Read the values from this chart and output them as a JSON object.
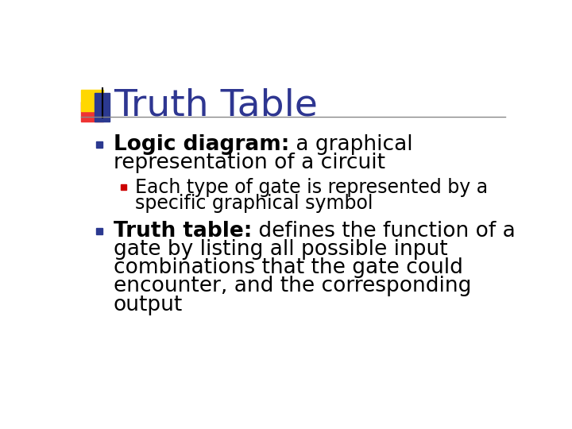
{
  "title": "Truth Table",
  "title_color": "#2E3691",
  "title_fontsize": 34,
  "background_color": "#FFFFFF",
  "bullet1_bold": "Logic diagram:",
  "bullet1_normal": " a graphical",
  "bullet1_line2": "representation of a circuit",
  "bullet1_marker_color": "#2B3990",
  "sub_bullet_marker_color": "#CC0000",
  "sub_bullet_line1": "Each type of gate is represented by a",
  "sub_bullet_line2": "specific graphical symbol",
  "bullet2_bold": "Truth table:",
  "bullet2_normal": " defines the function of a",
  "bullet2_lines": [
    "gate by listing all possible input",
    "combinations that the gate could",
    "encounter, and the corresponding",
    "output"
  ],
  "bullet2_marker_color": "#2B3990",
  "bullet_fontsize": 19,
  "sub_bullet_fontsize": 17,
  "decoration_yellow": "#FFD700",
  "decoration_red": "#EE3333",
  "decoration_blue": "#2B3990"
}
